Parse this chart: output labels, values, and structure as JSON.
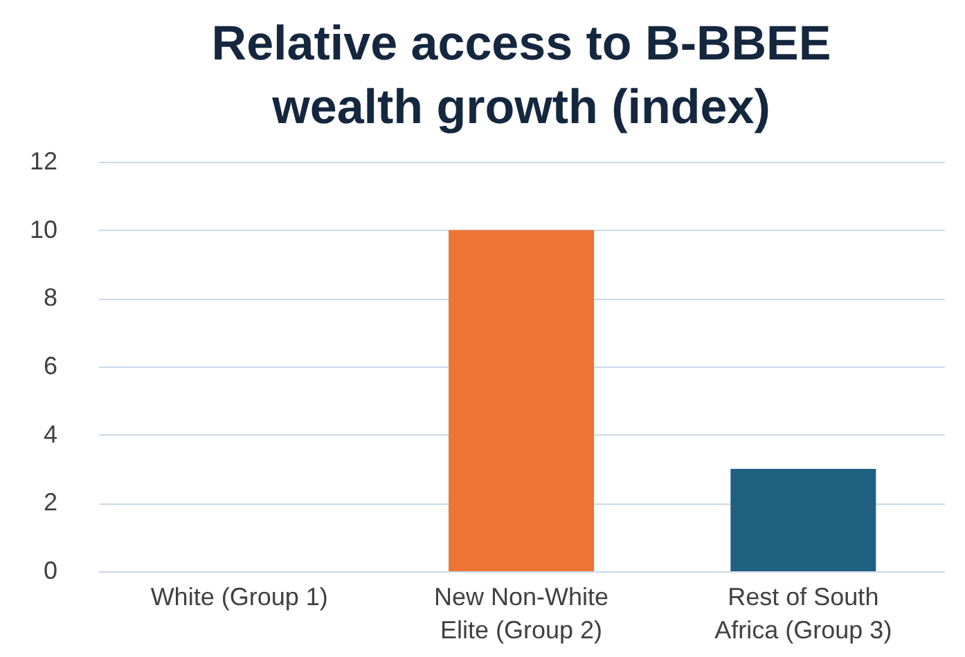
{
  "chart_data": {
    "type": "bar",
    "title": "Relative access to B-BBEE wealth growth (index)",
    "categories": [
      "White (Group 1)",
      "New Non-White Elite (Group 2)",
      "Rest of South Africa (Group 3)"
    ],
    "values": [
      0,
      10,
      3
    ],
    "colors": [
      "#4472c4",
      "#ed7533",
      "#1f5f80"
    ],
    "ylim": [
      0,
      12
    ],
    "yticks": [
      0,
      2,
      4,
      6,
      8,
      10,
      12
    ],
    "grid": "y"
  }
}
